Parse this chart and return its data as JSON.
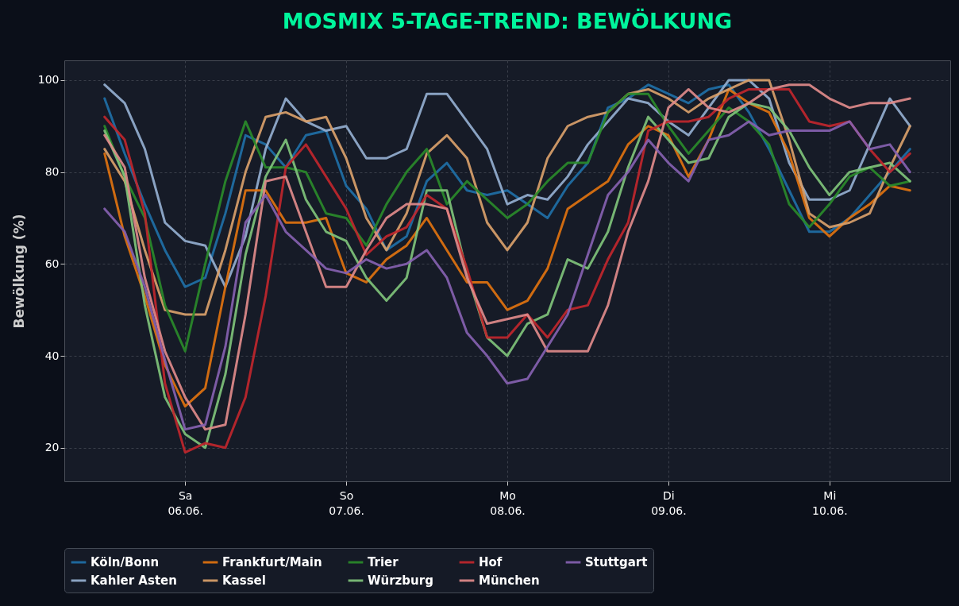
{
  "chart_data": {
    "type": "line",
    "title": "MOSMIX 5-TAGE-TREND: BEWÖLKUNG",
    "ylabel": "Bewölkung (%)",
    "x": [
      "--06-05T12:00",
      "--06-05T15:00",
      "--06-05T18:00",
      "--06-05T21:00",
      "--06-06T00:00",
      "--06-06T03:00",
      "--06-06T06:00",
      "--06-06T09:00",
      "--06-06T12:00",
      "--06-06T15:00",
      "--06-06T18:00",
      "--06-06T21:00",
      "--06-07T00:00",
      "--06-07T03:00",
      "--06-07T06:00",
      "--06-07T09:00",
      "--06-07T12:00",
      "--06-07T15:00",
      "--06-07T18:00",
      "--06-07T21:00",
      "--06-08T00:00",
      "--06-08T03:00",
      "--06-08T06:00",
      "--06-08T09:00",
      "--06-08T12:00",
      "--06-08T15:00",
      "--06-08T18:00",
      "--06-08T21:00",
      "--06-09T00:00",
      "--06-09T03:00",
      "--06-09T06:00",
      "--06-09T09:00",
      "--06-09T12:00",
      "--06-09T15:00",
      "--06-09T18:00",
      "--06-09T21:00",
      "--06-10T00:00",
      "--06-10T03:00",
      "--06-10T06:00",
      "--06-10T09:00",
      "--06-10T12:00"
    ],
    "series": [
      {
        "name": "Köln/Bonn",
        "color": "#1f6fa6",
        "values": [
          96,
          84,
          73,
          63,
          55,
          57,
          71,
          88,
          86,
          81,
          88,
          89,
          77,
          72,
          63,
          66,
          78,
          82,
          76,
          75,
          76,
          73,
          70,
          77,
          82,
          94,
          96,
          99,
          97,
          95,
          98,
          99,
          93,
          85,
          76,
          67,
          67,
          70,
          75,
          80,
          85
        ]
      },
      {
        "name": "Kahler Asten",
        "color": "#94aecf",
        "values": [
          99,
          95,
          85,
          69,
          65,
          64,
          55,
          66,
          85,
          96,
          91,
          89,
          90,
          83,
          83,
          85,
          97,
          97,
          91,
          85,
          73,
          75,
          74,
          79,
          86,
          91,
          96,
          95,
          91,
          88,
          94,
          100,
          100,
          96,
          82,
          74,
          74,
          76,
          86,
          96,
          90
        ]
      },
      {
        "name": "Frankfurt/Main",
        "color": "#e0720f",
        "values": [
          84,
          66,
          53,
          38,
          29,
          33,
          55,
          76,
          76,
          69,
          69,
          70,
          58,
          56,
          61,
          64,
          70,
          63,
          56,
          56,
          50,
          52,
          59,
          72,
          75,
          78,
          86,
          90,
          88,
          79,
          87,
          98,
          95,
          93,
          84,
          70,
          66,
          70,
          73,
          77,
          76
        ]
      },
      {
        "name": "Kassel",
        "color": "#d9a06a",
        "values": [
          85,
          78,
          63,
          50,
          49,
          49,
          63,
          80,
          92,
          93,
          91,
          92,
          83,
          70,
          63,
          71,
          84,
          88,
          83,
          69,
          63,
          69,
          83,
          90,
          92,
          93,
          97,
          98,
          96,
          93,
          96,
          98,
          100,
          100,
          87,
          71,
          68,
          69,
          71,
          81,
          90
        ]
      },
      {
        "name": "Trier",
        "color": "#2a8a2a",
        "values": [
          90,
          79,
          70,
          51,
          41,
          60,
          78,
          91,
          81,
          81,
          80,
          71,
          70,
          64,
          73,
          80,
          85,
          73,
          78,
          74,
          70,
          73,
          78,
          82,
          82,
          93,
          97,
          97,
          90,
          84,
          89,
          94,
          91,
          86,
          73,
          68,
          73,
          79,
          81,
          77,
          78
        ]
      },
      {
        "name": "Würzburg",
        "color": "#7fc27a",
        "values": [
          89,
          79,
          51,
          31,
          23,
          20,
          36,
          62,
          79,
          87,
          74,
          67,
          65,
          57,
          52,
          57,
          76,
          76,
          58,
          44,
          40,
          47,
          49,
          61,
          59,
          67,
          81,
          92,
          87,
          82,
          83,
          92,
          95,
          94,
          89,
          81,
          75,
          80,
          81,
          82,
          78
        ]
      },
      {
        "name": "Hof",
        "color": "#c0262d",
        "values": [
          92,
          87,
          71,
          34,
          19,
          21,
          20,
          31,
          53,
          81,
          86,
          79,
          72,
          62,
          66,
          68,
          75,
          72,
          59,
          44,
          44,
          49,
          44,
          50,
          51,
          61,
          69,
          89,
          91,
          91,
          92,
          96,
          98,
          98,
          98,
          91,
          90,
          91,
          85,
          80,
          84
        ]
      },
      {
        "name": "München",
        "color": "#e08a8a",
        "values": [
          88,
          81,
          57,
          41,
          31,
          24,
          25,
          49,
          78,
          79,
          67,
          55,
          55,
          63,
          70,
          73,
          73,
          72,
          57,
          47,
          48,
          49,
          41,
          41,
          41,
          51,
          67,
          78,
          94,
          98,
          94,
          93,
          95,
          98,
          99,
          99,
          96,
          94,
          95,
          95,
          96
        ]
      },
      {
        "name": "Stuttgart",
        "color": "#8561b0",
        "values": [
          72,
          67,
          55,
          39,
          24,
          25,
          42,
          69,
          75,
          67,
          63,
          59,
          58,
          61,
          59,
          60,
          63,
          57,
          45,
          40,
          34,
          35,
          42,
          49,
          62,
          75,
          80,
          87,
          82,
          78,
          87,
          88,
          91,
          88,
          89,
          89,
          89,
          91,
          85,
          86,
          80
        ]
      }
    ],
    "xlim": [
      "--06-05T06:00",
      "--06-10T18:00"
    ],
    "xticks": [
      {
        "value": "--06-06T00:00",
        "label": "Sa\n06.06."
      },
      {
        "value": "--06-07T00:00",
        "label": "So\n07.06."
      },
      {
        "value": "--06-08T00:00",
        "label": "Mo\n08.06."
      },
      {
        "value": "--06-09T00:00",
        "label": "Di\n09.06."
      },
      {
        "value": "--06-10T00:00",
        "label": "Mi\n10.06."
      }
    ],
    "ylim": [
      12.7,
      104.3
    ],
    "yticks": [
      20,
      40,
      60,
      80,
      100
    ],
    "grid": true,
    "legend": "bottom",
    "line_style": "solid"
  }
}
